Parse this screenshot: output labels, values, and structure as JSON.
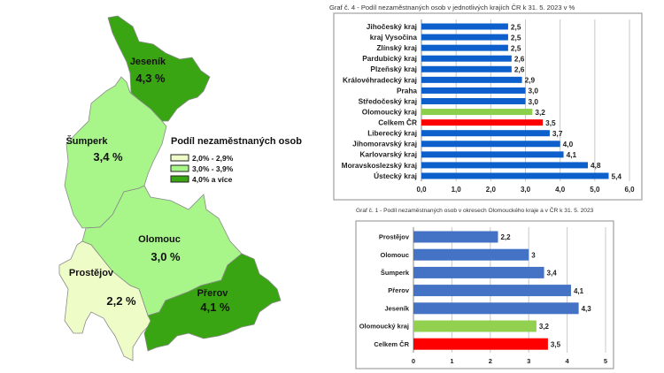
{
  "map": {
    "legend_title": "Podíl nezaměstnaných osob",
    "legend": [
      {
        "label": "2,0% - 2,9%",
        "color": "#eefcc8"
      },
      {
        "label": "3,0% - 3,9%",
        "color": "#a8f58a"
      },
      {
        "label": "4,0% a více",
        "color": "#3aa512"
      }
    ],
    "districts": [
      {
        "name": "Jeseník",
        "value": "4,3 %",
        "color": "#3aa512"
      },
      {
        "name": "Šumperk",
        "value": "3,4 %",
        "color": "#a8f58a"
      },
      {
        "name": "Olomouc",
        "value": "3,0 %",
        "color": "#a8f58a"
      },
      {
        "name": "Prostějov",
        "value": "2,2 %",
        "color": "#eefcc8"
      },
      {
        "name": "Přerov",
        "value": "4,1 %",
        "color": "#3aa512"
      }
    ]
  },
  "chart_data": [
    {
      "type": "bar",
      "orientation": "horizontal",
      "title": "Graf č. 4 - Podíl nezaměstnaných osob v jednotlivých krajích ČR k 31. 5. 2023 v %",
      "categories": [
        "Jihočeský kraj",
        "kraj Vysočina",
        "Zlínský kraj",
        "Pardubický kraj",
        "Plzeňský kraj",
        "Královéhradecký kraj",
        "Praha",
        "Středočeský kraj",
        "Olomoucký kraj",
        "Celkem ČR",
        "Liberecký kraj",
        "Jihomoravský kraj",
        "Karlovarský kraj",
        "Moravskoslezský kraj",
        "Ústecký kraj"
      ],
      "values": [
        2.5,
        2.5,
        2.5,
        2.6,
        2.6,
        2.9,
        3.0,
        3.0,
        3.2,
        3.5,
        3.7,
        4.0,
        4.1,
        4.8,
        5.4
      ],
      "data_labels": [
        "2,5",
        "2,5",
        "2,5",
        "2,6",
        "2,6",
        "2,9",
        "3,0",
        "3,0",
        "3,2",
        "3,5",
        "3,7",
        "4,0",
        "4,1",
        "4,8",
        "5,4"
      ],
      "colors": [
        "#0d5fcc",
        "#0d5fcc",
        "#0d5fcc",
        "#0d5fcc",
        "#0d5fcc",
        "#0d5fcc",
        "#0d5fcc",
        "#0d5fcc",
        "#8ccf4a",
        "#ff0000",
        "#0d5fcc",
        "#0d5fcc",
        "#0d5fcc",
        "#0d5fcc",
        "#0d5fcc"
      ],
      "xlim": [
        0,
        6
      ],
      "ticks": [
        "0,0",
        "1,0",
        "2,0",
        "3,0",
        "4,0",
        "5,0",
        "6,0"
      ],
      "grid": true
    },
    {
      "type": "bar",
      "orientation": "horizontal",
      "title": "Graf č. 1 - Podíl nezaměstnaných osob v okresech Olomouckého kraje a v ČR k 31. 5. 2023",
      "categories": [
        "Prostějov",
        "Olomouc",
        "Šumperk",
        "Přerov",
        "Jeseník",
        "Olomoucký kraj",
        "Celkem ČR"
      ],
      "values": [
        2.2,
        3,
        3.4,
        4.1,
        4.3,
        3.2,
        3.5
      ],
      "data_labels": [
        "2,2",
        "3",
        "3,4",
        "4,1",
        "4,3",
        "3,2",
        "3,5"
      ],
      "colors": [
        "#4472c4",
        "#4472c4",
        "#4472c4",
        "#4472c4",
        "#4472c4",
        "#92d050",
        "#ff0000"
      ],
      "xlim": [
        0,
        5
      ],
      "ticks": [
        "0",
        "1",
        "2",
        "3",
        "4",
        "5"
      ],
      "grid": true
    }
  ]
}
